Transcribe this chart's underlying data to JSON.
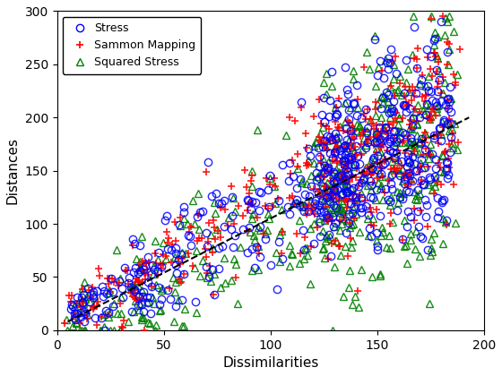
{
  "title": "",
  "xlabel": "Dissimilarities",
  "ylabel": "Distances",
  "xlim": [
    0,
    200
  ],
  "ylim": [
    0,
    300
  ],
  "xticks": [
    0,
    50,
    100,
    150,
    200
  ],
  "yticks": [
    0,
    50,
    100,
    150,
    200,
    250,
    300
  ],
  "dashed_line": {
    "x0": 5,
    "y0": 8,
    "x1": 193,
    "y1": 200
  },
  "n_points": 500,
  "seed": 77,
  "stress_color": "blue",
  "sammon_color": "red",
  "squared_color": "green",
  "legend_labels": [
    "Stress",
    "Sammon Mapping",
    "Squared Stress"
  ],
  "legend_markers": [
    "o",
    "+",
    "^"
  ],
  "legend_colors": [
    "blue",
    "red",
    "green"
  ],
  "figsize": [
    5.6,
    4.2
  ],
  "dpi": 100
}
